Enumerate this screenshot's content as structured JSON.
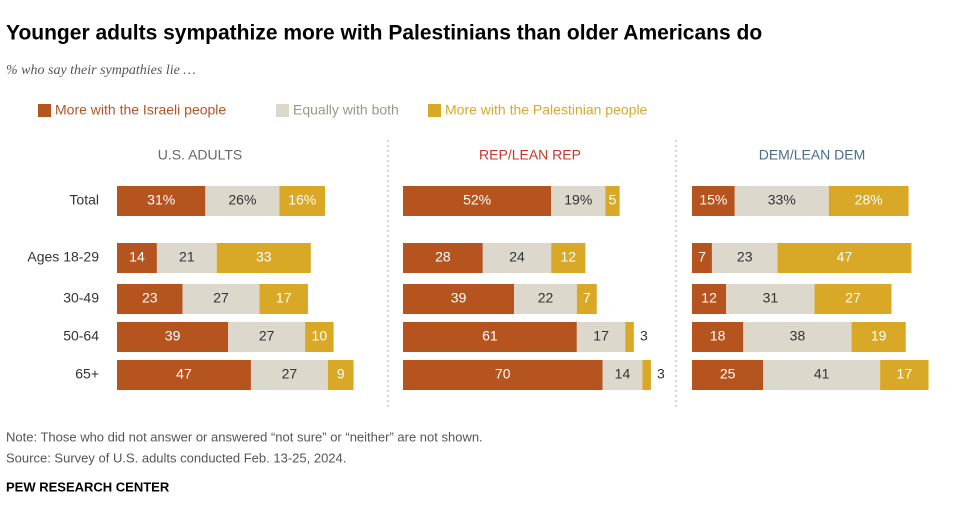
{
  "chart_data": {
    "type": "bar",
    "stacked": true,
    "orientation": "horizontal",
    "title": "Younger adults sympathize more with Palestinians than older Americans do",
    "subtitle": "% who say their sympathies lie …",
    "categories": [
      "Total",
      "Ages 18-29",
      "30-49",
      "50-64",
      "65+"
    ],
    "legend": [
      {
        "name": "More with the Israeli people",
        "color": "#b5541f",
        "text_color": "#b5541f"
      },
      {
        "name": "Equally with both",
        "color": "#dcd8cc",
        "text_color": "#9a968c"
      },
      {
        "name": "More with the Palestinian people",
        "color": "#d9a826",
        "text_color": "#d9a826"
      }
    ],
    "panels": [
      {
        "title": "U.S. ADULTS",
        "title_color": "#666666",
        "series": [
          {
            "values": [
              31,
              14,
              23,
              39,
              47
            ],
            "value_labels": [
              "31%",
              "14",
              "23",
              "39",
              "47"
            ]
          },
          {
            "values": [
              26,
              21,
              27,
              27,
              27
            ],
            "value_labels": [
              "26%",
              "21",
              "27",
              "27",
              "27"
            ]
          },
          {
            "values": [
              16,
              33,
              17,
              10,
              9
            ],
            "value_labels": [
              "16%",
              "33",
              "17",
              "10",
              "9"
            ]
          }
        ]
      },
      {
        "title": "REP/LEAN REP",
        "title_color": "#c0392b",
        "series": [
          {
            "values": [
              52,
              28,
              39,
              61,
              70
            ],
            "value_labels": [
              "52%",
              "28",
              "39",
              "61",
              "70"
            ]
          },
          {
            "values": [
              19,
              24,
              22,
              17,
              14
            ],
            "value_labels": [
              "19%",
              "24",
              "22",
              "17",
              "14"
            ]
          },
          {
            "values": [
              5,
              12,
              7,
              3,
              3
            ],
            "value_labels": [
              "5",
              "12",
              "7",
              "3",
              "3"
            ]
          }
        ]
      },
      {
        "title": "DEM/LEAN DEM",
        "title_color": "#4a6b8a",
        "series": [
          {
            "values": [
              15,
              7,
              12,
              18,
              25
            ],
            "value_labels": [
              "15%",
              "7",
              "12",
              "18",
              "25"
            ]
          },
          {
            "values": [
              33,
              23,
              31,
              38,
              41
            ],
            "value_labels": [
              "33%",
              "23",
              "31",
              "38",
              "41"
            ]
          },
          {
            "values": [
              28,
              47,
              27,
              19,
              17
            ],
            "value_labels": [
              "28%",
              "47",
              "27",
              "19",
              "17"
            ]
          }
        ]
      }
    ],
    "note": "Note: Those who did not answer or answered “not sure” or “neither” are not shown.",
    "source": "Source: Survey of U.S. adults conducted Feb. 13-25, 2024.",
    "footer": "PEW RESEARCH CENTER"
  }
}
